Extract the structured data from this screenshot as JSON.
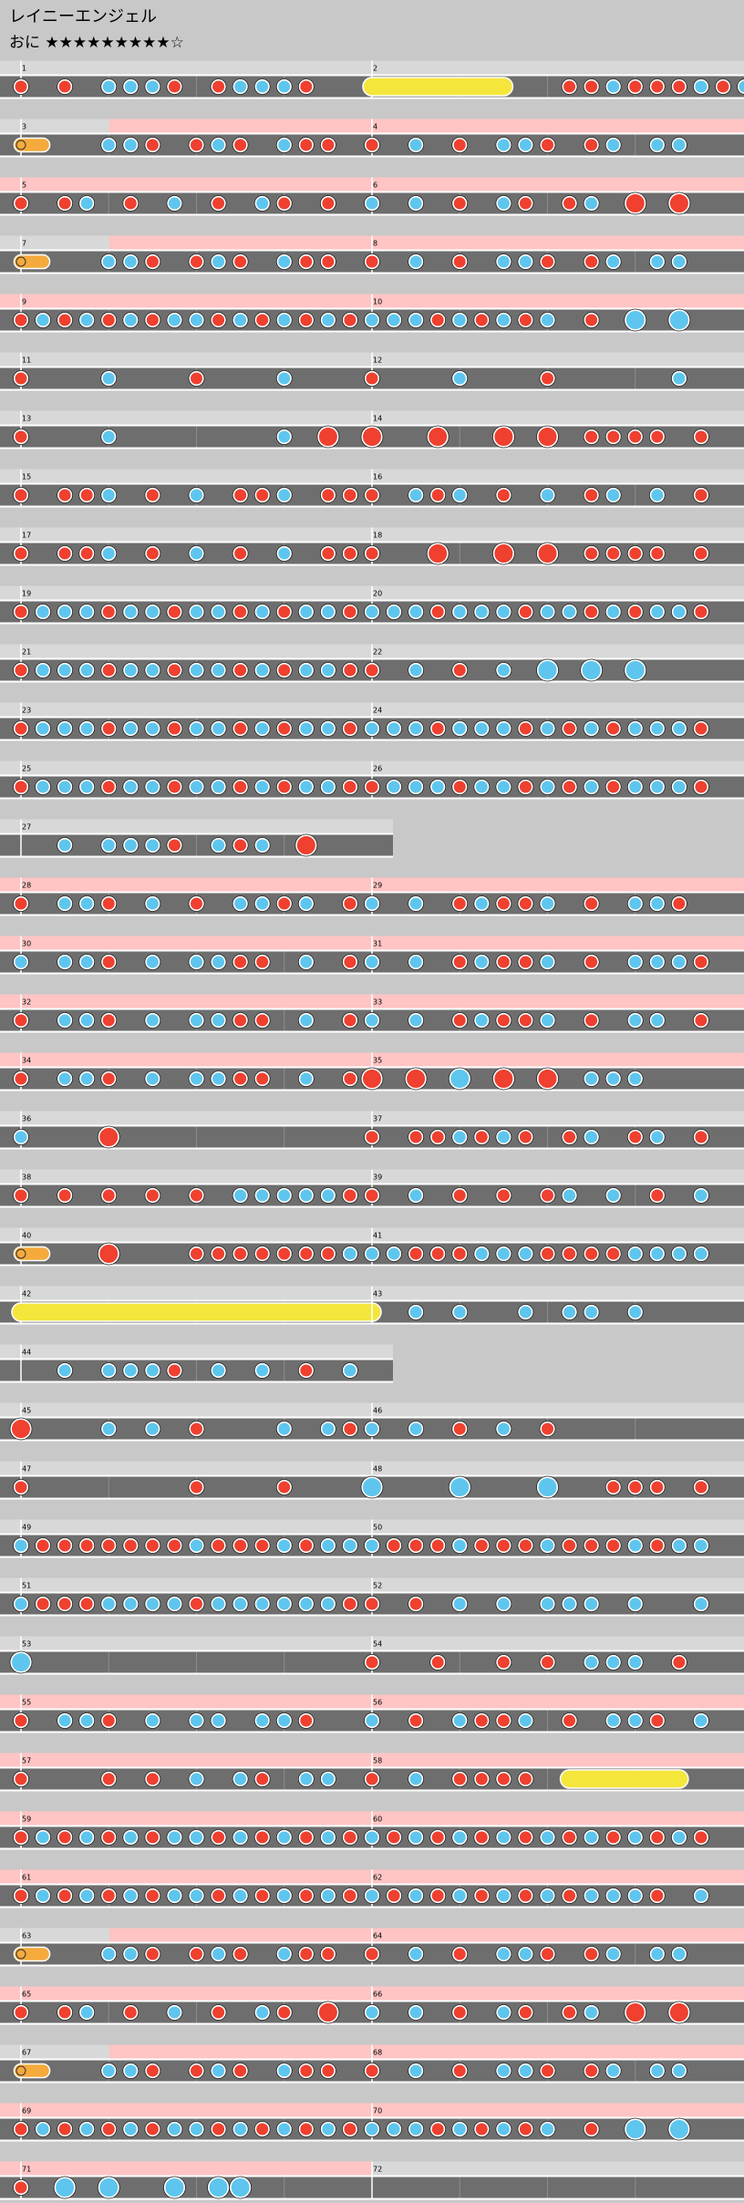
{
  "header": {
    "title": "レイニーエンジェル",
    "difficulty": "おに ★★★★★★★★★☆"
  },
  "measures": [
    1,
    2,
    3,
    4,
    5,
    6,
    7,
    8,
    9,
    10,
    11,
    12,
    13,
    14,
    15,
    16,
    17,
    18,
    19,
    20,
    21,
    22,
    23,
    24,
    25,
    26,
    27,
    28,
    29,
    30,
    31,
    32,
    33,
    34,
    35,
    36,
    37,
    38,
    39,
    40,
    41,
    42,
    43,
    44,
    45,
    46,
    47,
    48,
    49,
    50,
    51,
    52,
    53,
    54,
    55,
    56,
    57,
    58,
    59,
    60,
    61,
    62,
    63,
    64,
    65,
    66,
    67,
    68,
    69,
    70,
    71,
    72
  ]
}
